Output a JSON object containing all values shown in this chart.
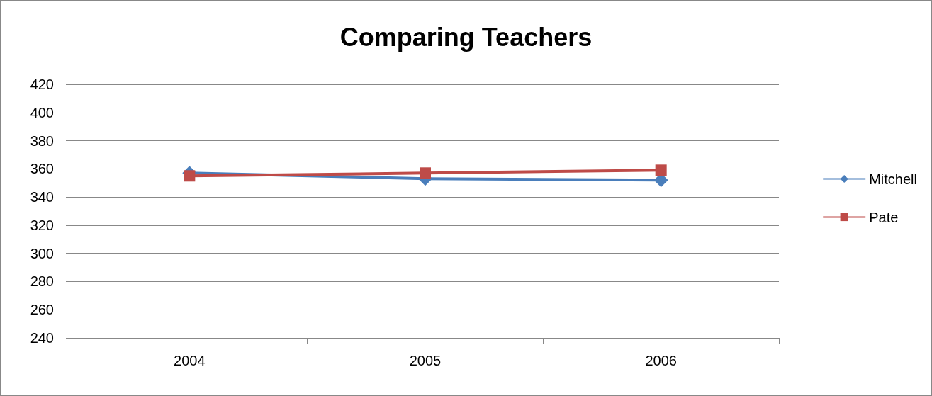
{
  "chart_data": {
    "type": "line",
    "title": "Comparing Teachers",
    "categories": [
      "2004",
      "2005",
      "2006"
    ],
    "series": [
      {
        "name": "Mitchell",
        "color": "#4a7ebb",
        "marker": "diamond",
        "values": [
          357,
          353,
          352
        ]
      },
      {
        "name": "Pate",
        "color": "#be4b48",
        "marker": "square",
        "values": [
          355,
          357,
          359
        ]
      }
    ],
    "ylim": [
      240,
      420
    ],
    "yticks": [
      240,
      260,
      280,
      300,
      320,
      340,
      360,
      380,
      400,
      420
    ],
    "grid": "y",
    "legend": "right"
  }
}
